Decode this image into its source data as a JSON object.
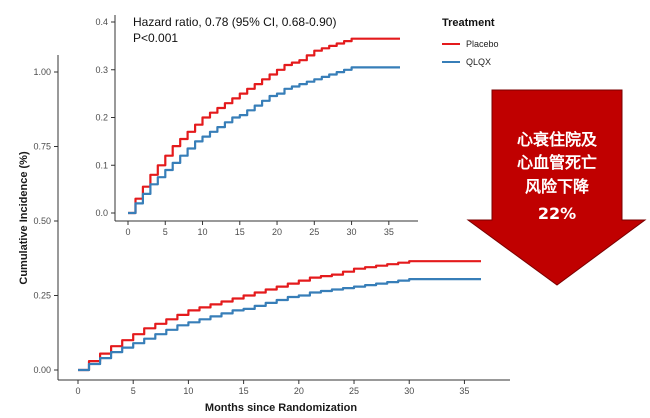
{
  "chart_data": [
    {
      "type": "line",
      "role": "main",
      "xlabel": "Months since Randomization",
      "ylabel": "Cumulative Incidence (%)",
      "xlim": [
        0,
        36.5
      ],
      "ylim": [
        0,
        1.0
      ],
      "xticks": [
        "0",
        "5",
        "10",
        "15",
        "20",
        "25",
        "30",
        "35"
      ],
      "yticks": [
        "0.00",
        "0.25",
        "0.50",
        "0.75",
        "1.00"
      ],
      "grid": false,
      "series": [
        {
          "name": "Placebo",
          "color": "#e41a1c",
          "x": [
            0,
            1,
            2,
            3,
            4,
            5,
            6,
            7,
            8,
            9,
            10,
            11,
            12,
            13,
            14,
            15,
            16,
            17,
            18,
            19,
            20,
            21,
            22,
            23,
            24,
            25,
            26,
            27,
            28,
            29,
            30,
            36.5
          ],
          "y": [
            0,
            0.03,
            0.055,
            0.08,
            0.1,
            0.12,
            0.14,
            0.155,
            0.17,
            0.185,
            0.2,
            0.21,
            0.22,
            0.23,
            0.24,
            0.25,
            0.26,
            0.27,
            0.28,
            0.29,
            0.3,
            0.31,
            0.315,
            0.32,
            0.33,
            0.34,
            0.345,
            0.35,
            0.355,
            0.36,
            0.365,
            0.365
          ]
        },
        {
          "name": "QLQX",
          "color": "#377eb8",
          "x": [
            0,
            1,
            2,
            3,
            4,
            5,
            6,
            7,
            8,
            9,
            10,
            11,
            12,
            13,
            14,
            15,
            16,
            17,
            18,
            19,
            20,
            21,
            22,
            23,
            24,
            25,
            26,
            27,
            28,
            29,
            30,
            36.5
          ],
          "y": [
            0,
            0.02,
            0.04,
            0.06,
            0.075,
            0.09,
            0.105,
            0.12,
            0.135,
            0.15,
            0.16,
            0.17,
            0.18,
            0.19,
            0.2,
            0.205,
            0.215,
            0.225,
            0.235,
            0.245,
            0.25,
            0.26,
            0.265,
            0.27,
            0.275,
            0.28,
            0.285,
            0.29,
            0.295,
            0.3,
            0.305,
            0.305
          ]
        }
      ]
    },
    {
      "type": "line",
      "role": "inset",
      "xlim": [
        0,
        36.5
      ],
      "ylim": [
        0,
        0.4
      ],
      "xticks": [
        "0",
        "5",
        "10",
        "15",
        "20",
        "25",
        "30",
        "35"
      ],
      "yticks": [
        "0.0",
        "0.1",
        "0.2",
        "0.3",
        "0.4"
      ],
      "grid": false,
      "annotations": [
        "Hazard ratio, 0.78 (95% CI, 0.68-0.90)",
        "P<0.001"
      ],
      "series": [
        {
          "name": "Placebo",
          "color": "#e41a1c",
          "x": [
            0,
            1,
            2,
            3,
            4,
            5,
            6,
            7,
            8,
            9,
            10,
            11,
            12,
            13,
            14,
            15,
            16,
            17,
            18,
            19,
            20,
            21,
            22,
            23,
            24,
            25,
            26,
            27,
            28,
            29,
            30,
            36.5
          ],
          "y": [
            0,
            0.03,
            0.055,
            0.08,
            0.1,
            0.12,
            0.14,
            0.155,
            0.17,
            0.185,
            0.2,
            0.21,
            0.22,
            0.23,
            0.24,
            0.25,
            0.26,
            0.27,
            0.28,
            0.29,
            0.3,
            0.31,
            0.315,
            0.32,
            0.33,
            0.34,
            0.345,
            0.35,
            0.355,
            0.36,
            0.365,
            0.365
          ]
        },
        {
          "name": "QLQX",
          "color": "#377eb8",
          "x": [
            0,
            1,
            2,
            3,
            4,
            5,
            6,
            7,
            8,
            9,
            10,
            11,
            12,
            13,
            14,
            15,
            16,
            17,
            18,
            19,
            20,
            21,
            22,
            23,
            24,
            25,
            26,
            27,
            28,
            29,
            30,
            36.5
          ],
          "y": [
            0,
            0.02,
            0.04,
            0.06,
            0.075,
            0.09,
            0.105,
            0.12,
            0.135,
            0.15,
            0.16,
            0.17,
            0.18,
            0.19,
            0.2,
            0.205,
            0.215,
            0.225,
            0.235,
            0.245,
            0.25,
            0.26,
            0.265,
            0.27,
            0.275,
            0.28,
            0.285,
            0.29,
            0.295,
            0.3,
            0.305,
            0.305
          ]
        }
      ]
    }
  ],
  "legend": {
    "title": "Treatment",
    "items": [
      {
        "label": "Placebo",
        "color": "#e41a1c"
      },
      {
        "label": "QLQX",
        "color": "#377eb8"
      }
    ]
  },
  "callout": {
    "lines": [
      "心衰住院及",
      "心血管死亡",
      "风险下降",
      "22%"
    ],
    "fill": "#c00000"
  }
}
